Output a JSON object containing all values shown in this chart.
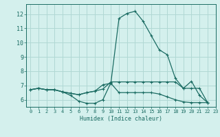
{
  "background_color": "#d4f0ed",
  "grid_color": "#b0d8d4",
  "line_color": "#1a6b62",
  "xlabel": "Humidex (Indice chaleur)",
  "xlim": [
    -0.5,
    23
  ],
  "ylim": [
    5.5,
    12.7
  ],
  "yticks": [
    6,
    7,
    8,
    9,
    10,
    11,
    12
  ],
  "xticks": [
    0,
    1,
    2,
    3,
    4,
    5,
    6,
    7,
    8,
    9,
    10,
    11,
    12,
    13,
    14,
    15,
    16,
    17,
    18,
    19,
    20,
    21,
    22,
    23
  ],
  "curves": [
    {
      "x": [
        0,
        1,
        2,
        3,
        4,
        5,
        6,
        7,
        8,
        9,
        10,
        11,
        12,
        13,
        14,
        15,
        16,
        17,
        18,
        19,
        20,
        21,
        22
      ],
      "y": [
        6.7,
        6.8,
        6.7,
        6.7,
        6.55,
        6.3,
        5.9,
        5.75,
        5.75,
        6.0,
        7.2,
        11.7,
        12.05,
        12.2,
        11.5,
        10.5,
        9.5,
        9.15,
        7.5,
        6.8,
        7.3,
        6.3,
        5.8
      ]
    },
    {
      "x": [
        0,
        1,
        2,
        3,
        4,
        5,
        6,
        7,
        8,
        9,
        10,
        11,
        12,
        13,
        14,
        15,
        16,
        17,
        18,
        19,
        20,
        21,
        22
      ],
      "y": [
        6.7,
        6.8,
        6.7,
        6.7,
        6.55,
        6.45,
        6.35,
        6.5,
        6.6,
        6.75,
        7.25,
        7.25,
        7.25,
        7.25,
        7.25,
        7.25,
        7.25,
        7.25,
        7.25,
        6.8,
        6.8,
        6.8,
        5.8
      ]
    },
    {
      "x": [
        0,
        1,
        2,
        3,
        4,
        5,
        6,
        7,
        8,
        9,
        10,
        11,
        12,
        13,
        14,
        15,
        16,
        17,
        18,
        19,
        20,
        21,
        22
      ],
      "y": [
        6.7,
        6.8,
        6.7,
        6.7,
        6.55,
        6.45,
        6.35,
        6.5,
        6.6,
        7.05,
        7.15,
        6.5,
        6.5,
        6.5,
        6.5,
        6.5,
        6.4,
        6.2,
        6.0,
        5.85,
        5.8,
        5.8,
        5.8
      ]
    }
  ]
}
